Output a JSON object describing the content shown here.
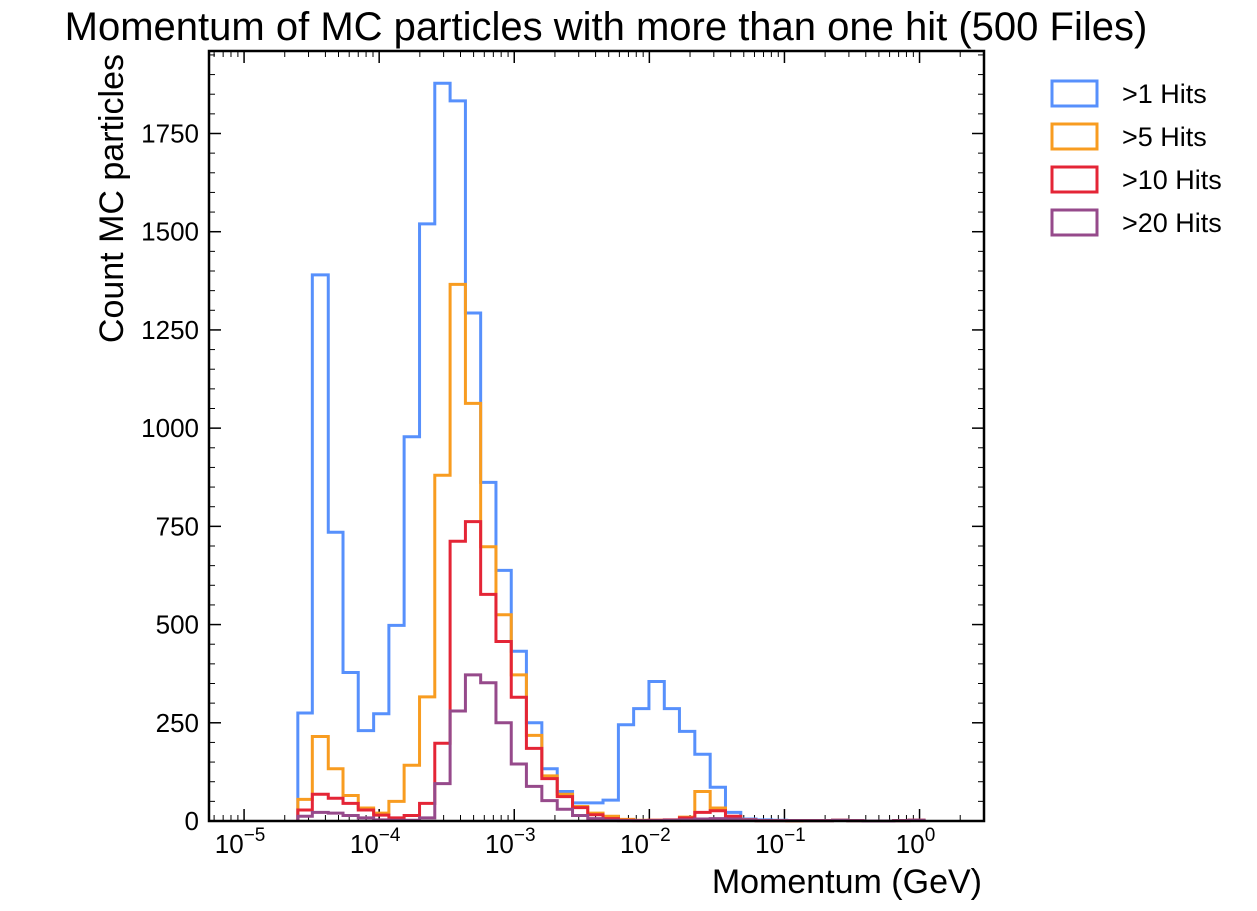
{
  "chart_data": {
    "type": "histogram-step",
    "title": "Momentum of MC particles with more than one hit (500 Files)",
    "xlabel": "Momentum (GeV)",
    "ylabel": "Count MC particles",
    "xscale": "log",
    "xlim": [
      5.5e-06,
      3.0
    ],
    "ylim": [
      0,
      1960
    ],
    "yticks": [
      0,
      250,
      500,
      750,
      1000,
      1250,
      1500,
      1750
    ],
    "xtick_exponents": [
      -5,
      -4,
      -3,
      -2,
      -1,
      0
    ],
    "xtick_base": "10",
    "legend_position": "outside-right-top",
    "bin_edges": [
      2.5e-05,
      3.2e-05,
      4.2e-05,
      5.4e-05,
      7e-05,
      9.1e-05,
      0.000118,
      0.000153,
      0.000199,
      0.000258,
      0.000335,
      0.000435,
      0.000564,
      0.000732,
      0.00095,
      0.00123,
      0.0016,
      0.00208,
      0.0027,
      0.0035,
      0.00454,
      0.0059,
      0.00765,
      0.00993,
      0.0129,
      0.0167,
      0.0217,
      0.0282,
      0.0366,
      0.0475,
      0.0616,
      0.08,
      0.104,
      0.135,
      0.175,
      0.227,
      0.294,
      0.382,
      0.496,
      0.644,
      0.835,
      1.08
    ],
    "series": [
      {
        "name": ">1 Hits",
        "color": "#5790fc",
        "values": [
          275,
          1390,
          735,
          378,
          230,
          273,
          498,
          978,
          1520,
          1878,
          1833,
          1293,
          862,
          638,
          432,
          250,
          133,
          75,
          46,
          46,
          53,
          245,
          286,
          355,
          286,
          228,
          170,
          86,
          22,
          5,
          3,
          2,
          1,
          1,
          1,
          2,
          1,
          0,
          0,
          1,
          2
        ]
      },
      {
        "name": ">5 Hits",
        "color": "#f89c20",
        "values": [
          55,
          215,
          133,
          65,
          33,
          20,
          50,
          142,
          316,
          880,
          1366,
          1063,
          698,
          525,
          372,
          218,
          115,
          68,
          37,
          20,
          12,
          4,
          2,
          2,
          1,
          10,
          75,
          33,
          10,
          3,
          1,
          1,
          0,
          1,
          1,
          2,
          1,
          0,
          0,
          1,
          2
        ]
      },
      {
        "name": ">10 Hits",
        "color": "#e42536",
        "values": [
          28,
          68,
          58,
          45,
          28,
          15,
          8,
          14,
          45,
          198,
          712,
          762,
          577,
          457,
          315,
          185,
          108,
          62,
          34,
          16,
          6,
          2,
          1,
          2,
          3,
          8,
          22,
          26,
          12,
          3,
          1,
          1,
          1,
          1,
          1,
          2,
          1,
          0,
          0,
          1,
          2
        ]
      },
      {
        "name": ">20 Hits",
        "color": "#964a8b",
        "values": [
          12,
          22,
          20,
          14,
          8,
          3,
          2,
          2,
          8,
          95,
          280,
          372,
          352,
          250,
          145,
          88,
          52,
          30,
          14,
          6,
          2,
          1,
          1,
          1,
          2,
          3,
          5,
          6,
          5,
          2,
          1,
          1,
          1,
          1,
          1,
          2,
          1,
          0,
          0,
          1,
          2
        ]
      }
    ]
  }
}
